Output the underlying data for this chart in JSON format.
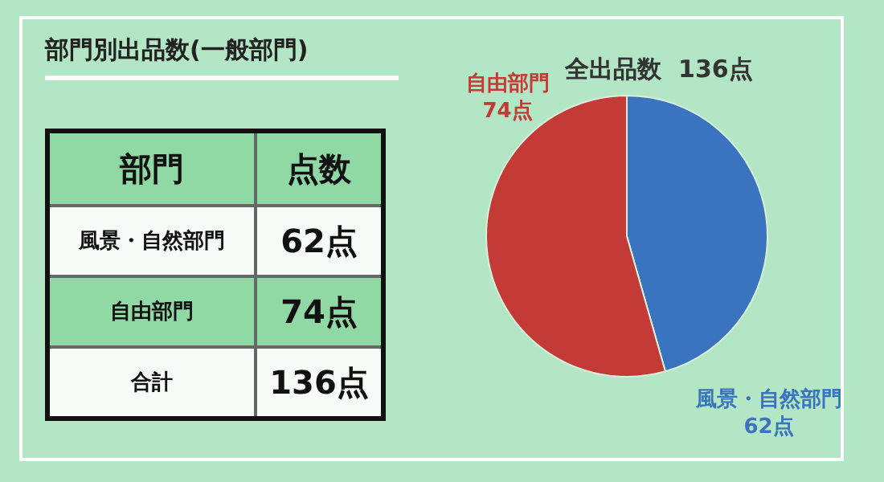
{
  "chart_data": [
    {
      "type": "other",
      "title": "部門別出品数(一般部門)",
      "annotations": [
        "部門",
        "点数",
        "風景・自然部門",
        "62点",
        "自由部門",
        "74点",
        "合計",
        "136点"
      ]
    },
    {
      "type": "pie",
      "annotations": [
        "全出品数  136点"
      ],
      "categories": [
        "風景・自然部門",
        "自由部門"
      ],
      "values": [
        62,
        74
      ],
      "colors": [
        "#3b74be",
        "#c43a36"
      ],
      "value_labels": [
        "62点",
        "74点"
      ]
    }
  ]
}
